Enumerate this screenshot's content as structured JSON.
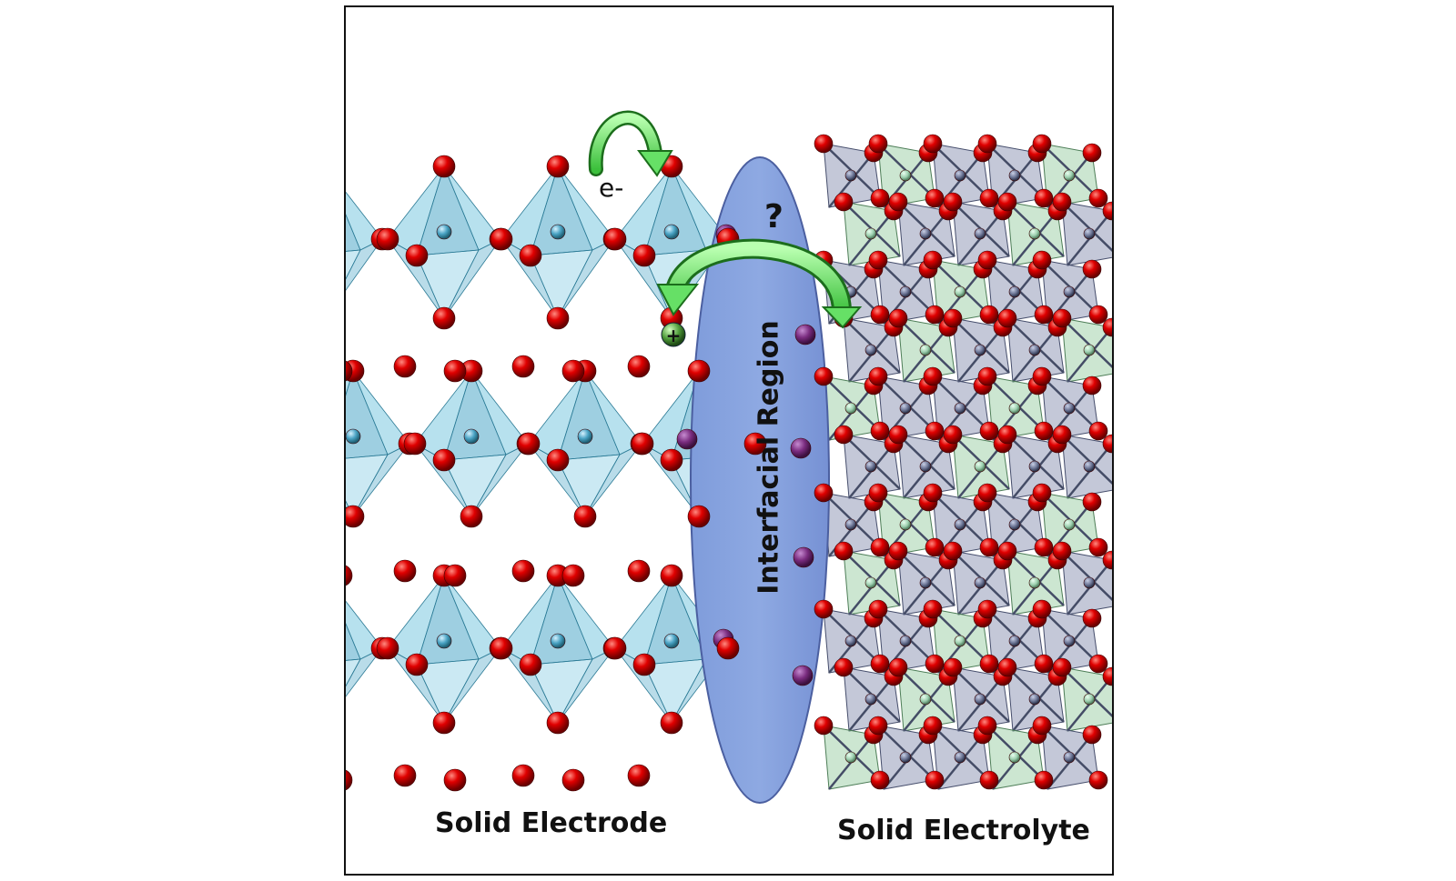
{
  "labels": {
    "electrode": "Solid Electrode",
    "electrolyte": "Solid Electrolyte",
    "interfacial": "Interfacial Region",
    "electron": "e-",
    "question": "?",
    "plus": "+"
  },
  "colors": {
    "oxygen": "#d40000",
    "electrode_octahedra": "#5fb6d6",
    "electrode_metal": "#3f8fa6",
    "electrolyte_octahedra_green": "#8fc79a",
    "electrolyte_octahedra_gray": "#7c86a8",
    "interfacial_region": "#6d8bd0",
    "arrow": "#66e066",
    "ion": "#6a2b6e"
  },
  "icons": {
    "electron_arrow": "curved-arrow-icon",
    "ion_arrow": "curved-arrow-icon",
    "ion_sphere": "cation-sphere-icon"
  }
}
